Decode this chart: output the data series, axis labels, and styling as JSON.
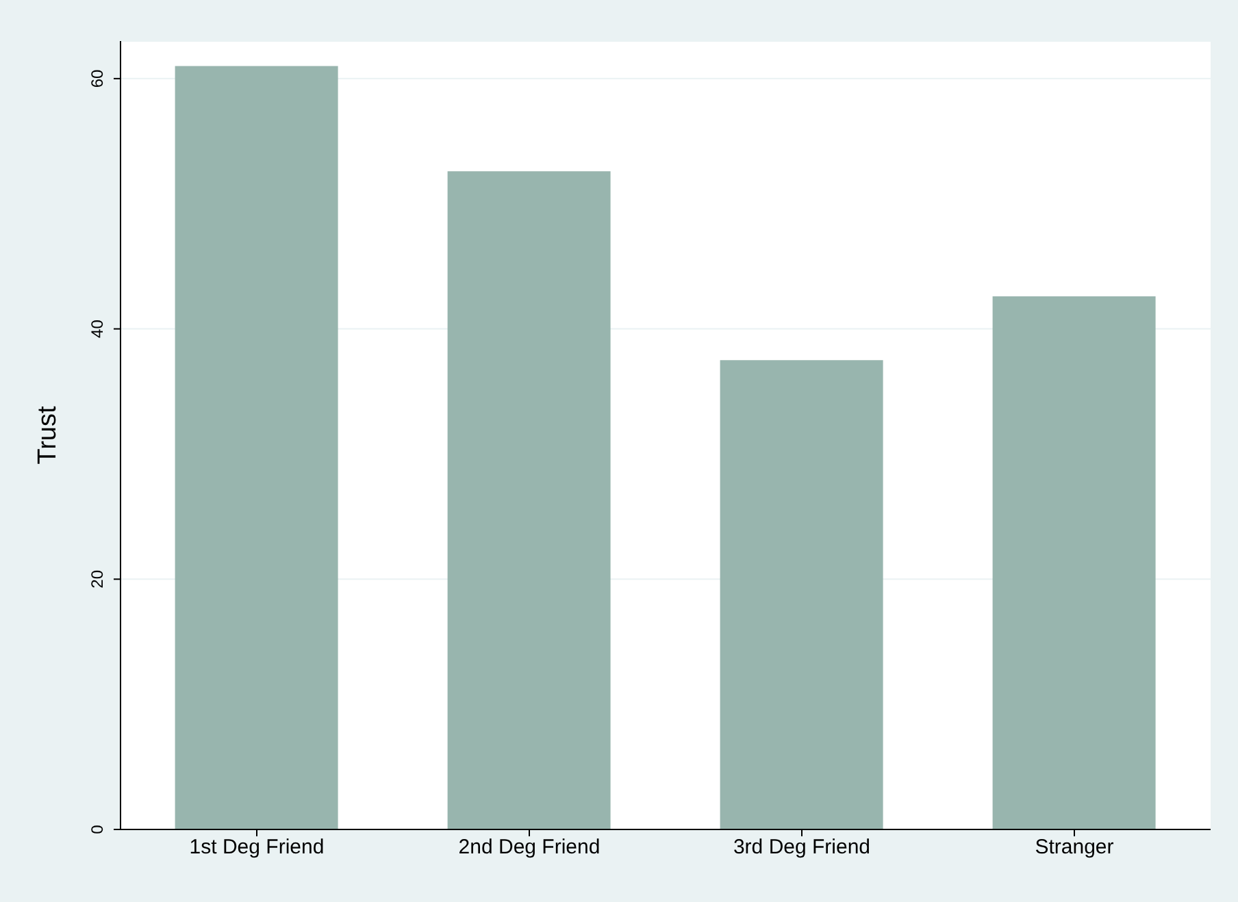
{
  "chart_data": {
    "type": "bar",
    "ylabel": "Trust",
    "categories": [
      "1st Deg Friend",
      "2nd Deg Friend",
      "3rd Deg Friend",
      "Stranger"
    ],
    "values": [
      61,
      52.6,
      37.5,
      42.6
    ],
    "color": "#98b5ae",
    "ylim": [
      0,
      63
    ],
    "yticks": [
      0,
      20,
      40,
      60
    ],
    "grid": "y"
  }
}
